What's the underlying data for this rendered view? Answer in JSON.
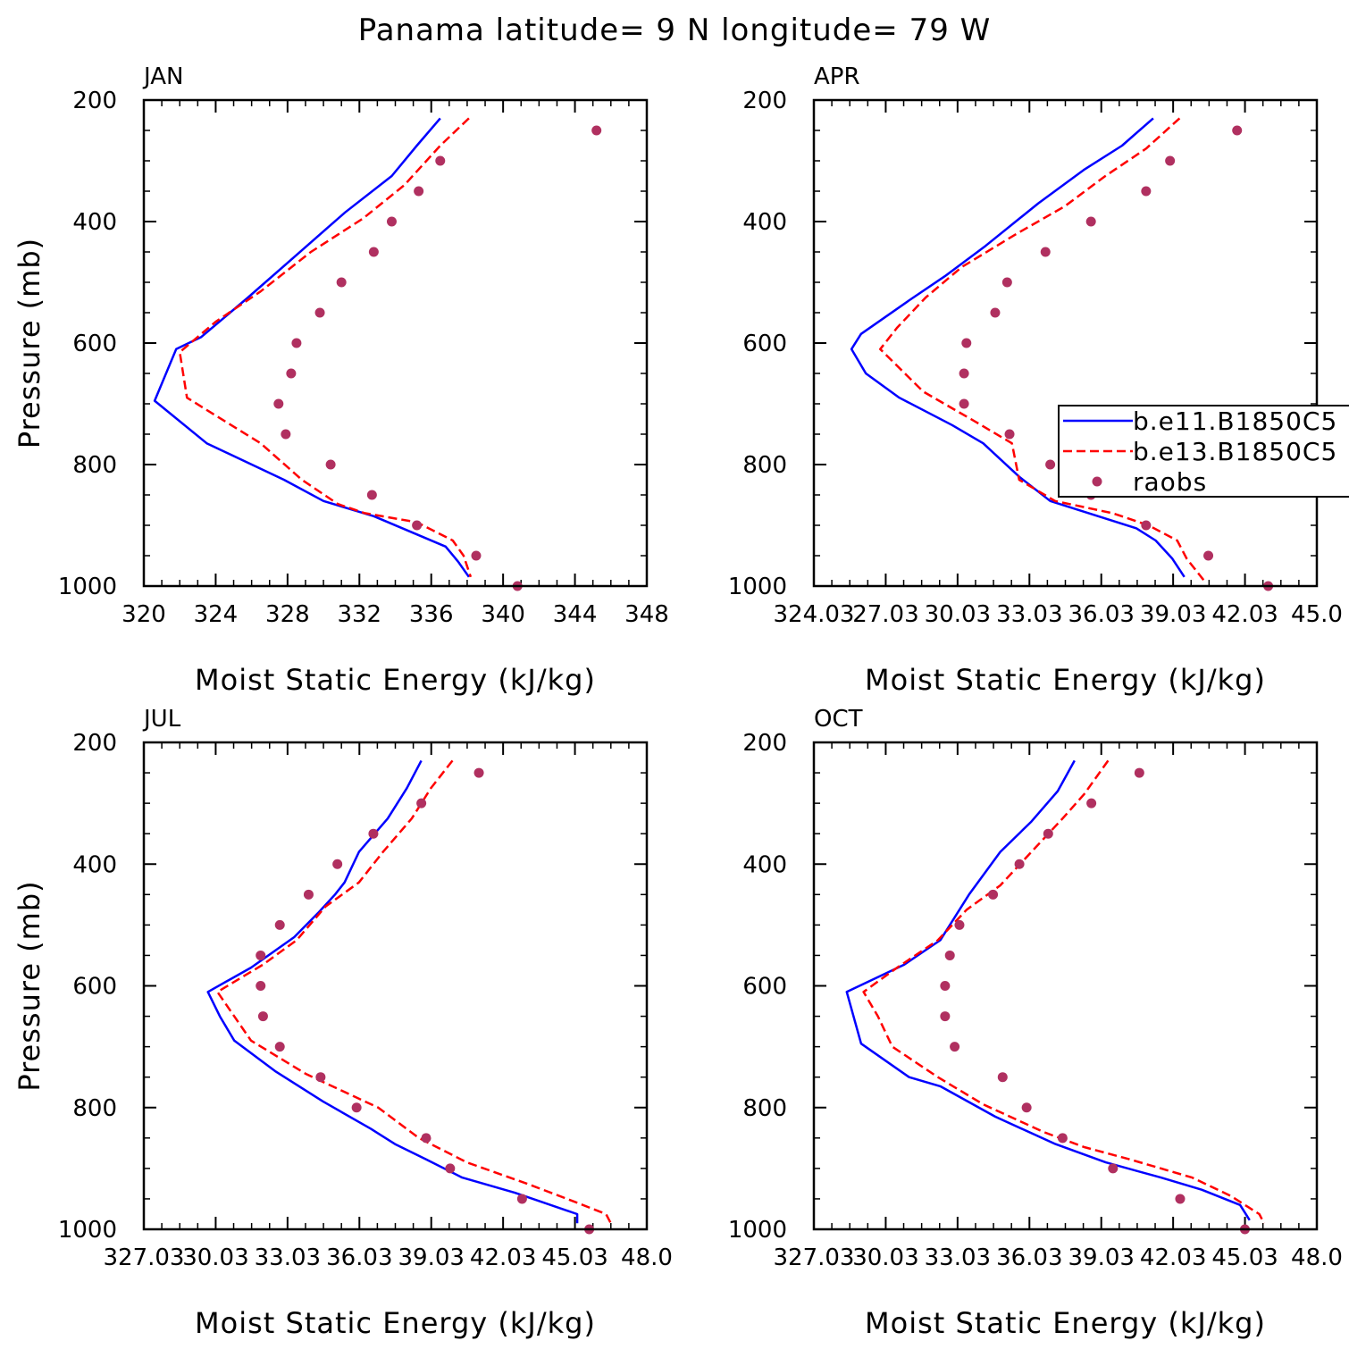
{
  "title": "Panama  latitude= 9 N longitude= 79 W",
  "legend": {
    "entries": [
      {
        "label": "b.e11.B1850C5",
        "color": "#0000ff",
        "style": "solid"
      },
      {
        "label": "b.e13.B1850C5",
        "color": "#ff0000",
        "style": "dashed"
      },
      {
        "label": "raobs",
        "color": "#b03060",
        "style": "marker"
      }
    ]
  },
  "chart_data": [
    {
      "type": "line",
      "panel_label": "JAN",
      "xlabel": "Moist Static Energy (kJ/kg)",
      "ylabel": "Pressure (mb)",
      "xlim": [
        320,
        348
      ],
      "ylim": [
        1000,
        200
      ],
      "xticks": [
        "320",
        "324",
        "328",
        "332",
        "336",
        "340",
        "344",
        "348"
      ],
      "yticks": [
        "200",
        "400",
        "600",
        "800",
        "1000"
      ],
      "series": [
        {
          "name": "b.e11.B1850C5",
          "color": "#0000ff",
          "style": "solid",
          "points": [
            [
              336.5,
              230
            ],
            [
              335.2,
              275
            ],
            [
              333.8,
              325
            ],
            [
              331.2,
              385
            ],
            [
              328.5,
              455
            ],
            [
              325.8,
              525
            ],
            [
              323.2,
              590
            ],
            [
              321.8,
              610
            ],
            [
              320.6,
              695
            ],
            [
              323.5,
              765
            ],
            [
              327.8,
              825
            ],
            [
              330.0,
              860
            ],
            [
              332.8,
              885
            ],
            [
              335.2,
              915
            ],
            [
              336.8,
              935
            ],
            [
              337.5,
              960
            ],
            [
              338.1,
              985
            ]
          ]
        },
        {
          "name": "b.e13.B1850C5",
          "color": "#ff0000",
          "style": "dashed",
          "points": [
            [
              338.1,
              230
            ],
            [
              336.5,
              275
            ],
            [
              334.5,
              340
            ],
            [
              332.2,
              395
            ],
            [
              329.3,
              450
            ],
            [
              326.5,
              515
            ],
            [
              324.0,
              565
            ],
            [
              322.0,
              615
            ],
            [
              322.4,
              690
            ],
            [
              326.5,
              765
            ],
            [
              328.8,
              825
            ],
            [
              330.8,
              865
            ],
            [
              332.3,
              880
            ],
            [
              335.2,
              895
            ],
            [
              337.2,
              925
            ],
            [
              337.8,
              950
            ],
            [
              338.2,
              985
            ]
          ]
        },
        {
          "name": "raobs",
          "color": "#b03060",
          "style": "marker",
          "points": [
            [
              345.2,
              250
            ],
            [
              336.5,
              300
            ],
            [
              335.3,
              350
            ],
            [
              333.8,
              400
            ],
            [
              332.8,
              450
            ],
            [
              331.0,
              500
            ],
            [
              329.8,
              550
            ],
            [
              328.5,
              600
            ],
            [
              328.2,
              650
            ],
            [
              327.5,
              700
            ],
            [
              327.9,
              750
            ],
            [
              330.4,
              800
            ],
            [
              332.7,
              850
            ],
            [
              335.2,
              900
            ],
            [
              338.5,
              950
            ],
            [
              340.8,
              1000
            ]
          ]
        }
      ]
    },
    {
      "type": "line",
      "panel_label": "APR",
      "xlabel": "Moist Static Energy (kJ/kg)",
      "ylabel": "",
      "xlim": [
        324.03,
        345.03
      ],
      "ylim": [
        1000,
        200
      ],
      "xticks": [
        "324.03",
        "27.03",
        "30.03",
        "33.03",
        "36.03",
        "39.03",
        "42.03",
        "45.0"
      ],
      "yticks": [
        "200",
        "400",
        "600",
        "800",
        "1000"
      ],
      "series": [
        {
          "name": "b.e11.B1850C5",
          "color": "#0000ff",
          "style": "solid",
          "points": [
            [
              338.2,
              230
            ],
            [
              336.9,
              275
            ],
            [
              335.3,
              315
            ],
            [
              333.4,
              370
            ],
            [
              331.2,
              440
            ],
            [
              329.5,
              490
            ],
            [
              328.0,
              530
            ],
            [
              326.0,
              585
            ],
            [
              325.6,
              610
            ],
            [
              326.2,
              650
            ],
            [
              327.6,
              690
            ],
            [
              329.8,
              735
            ],
            [
              331.1,
              765
            ],
            [
              332.6,
              820
            ],
            [
              333.9,
              860
            ],
            [
              335.9,
              885
            ],
            [
              337.5,
              905
            ],
            [
              338.3,
              925
            ],
            [
              339.0,
              955
            ],
            [
              339.5,
              985
            ]
          ]
        },
        {
          "name": "b.e13.B1850C5",
          "color": "#ff0000",
          "style": "dashed",
          "points": [
            [
              339.3,
              230
            ],
            [
              337.9,
              280
            ],
            [
              336.2,
              325
            ],
            [
              334.5,
              375
            ],
            [
              332.5,
              420
            ],
            [
              330.2,
              475
            ],
            [
              328.7,
              525
            ],
            [
              327.5,
              575
            ],
            [
              326.8,
              610
            ],
            [
              328.6,
              680
            ],
            [
              330.8,
              730
            ],
            [
              332.3,
              765
            ],
            [
              332.6,
              825
            ],
            [
              334.1,
              860
            ],
            [
              336.5,
              880
            ],
            [
              338.0,
              900
            ],
            [
              339.2,
              925
            ],
            [
              339.6,
              955
            ],
            [
              340.3,
              990
            ]
          ]
        },
        {
          "name": "raobs",
          "color": "#b03060",
          "style": "marker",
          "points": [
            [
              341.7,
              250
            ],
            [
              338.9,
              300
            ],
            [
              337.9,
              350
            ],
            [
              335.6,
              400
            ],
            [
              333.7,
              450
            ],
            [
              332.1,
              500
            ],
            [
              331.6,
              550
            ],
            [
              330.4,
              600
            ],
            [
              330.3,
              650
            ],
            [
              330.3,
              700
            ],
            [
              332.2,
              750
            ],
            [
              333.9,
              800
            ],
            [
              335.6,
              850
            ],
            [
              337.9,
              900
            ],
            [
              340.5,
              950
            ],
            [
              343.0,
              1000
            ]
          ]
        }
      ]
    },
    {
      "type": "line",
      "panel_label": "JUL",
      "xlabel": "Moist Static Energy (kJ/kg)",
      "ylabel": "Pressure (mb)",
      "xlim": [
        327.03,
        348.0
      ],
      "ylim": [
        1000,
        200
      ],
      "xticks": [
        "327.03",
        "30.03",
        "33.03",
        "36.03",
        "39.03",
        "42.03",
        "45.03",
        "48.0"
      ],
      "yticks": [
        "200",
        "400",
        "600",
        "800",
        "1000"
      ],
      "series": [
        {
          "name": "b.e11.B1850C5",
          "color": "#0000ff",
          "style": "solid",
          "points": [
            [
              338.6,
              230
            ],
            [
              338.0,
              275
            ],
            [
              337.2,
              325
            ],
            [
              336.0,
              380
            ],
            [
              335.4,
              430
            ],
            [
              335.0,
              450
            ],
            [
              334.3,
              480
            ],
            [
              333.3,
              520
            ],
            [
              331.5,
              570
            ],
            [
              329.7,
              610
            ],
            [
              330.2,
              650
            ],
            [
              330.8,
              690
            ],
            [
              332.5,
              740
            ],
            [
              334.5,
              790
            ],
            [
              336.5,
              835
            ],
            [
              337.5,
              860
            ],
            [
              338.8,
              885
            ],
            [
              340.3,
              915
            ],
            [
              342.5,
              940
            ],
            [
              345.1,
              975
            ],
            [
              345.1,
              990
            ]
          ]
        },
        {
          "name": "b.e13.B1850C5",
          "color": "#ff0000",
          "style": "dashed",
          "points": [
            [
              339.9,
              230
            ],
            [
              339.0,
              275
            ],
            [
              338.2,
              325
            ],
            [
              337.0,
              380
            ],
            [
              336.0,
              430
            ],
            [
              334.6,
              470
            ],
            [
              333.4,
              525
            ],
            [
              332.0,
              565
            ],
            [
              330.1,
              610
            ],
            [
              330.8,
              650
            ],
            [
              331.5,
              690
            ],
            [
              333.8,
              745
            ],
            [
              336.8,
              800
            ],
            [
              338.5,
              850
            ],
            [
              340.5,
              890
            ],
            [
              343.0,
              925
            ],
            [
              345.0,
              955
            ],
            [
              346.3,
              975
            ],
            [
              346.5,
              990
            ]
          ]
        },
        {
          "name": "raobs",
          "color": "#b03060",
          "style": "marker",
          "points": [
            [
              341.0,
              250
            ],
            [
              338.6,
              300
            ],
            [
              336.6,
              350
            ],
            [
              335.1,
              400
            ],
            [
              333.9,
              450
            ],
            [
              332.7,
              500
            ],
            [
              331.9,
              550
            ],
            [
              331.9,
              600
            ],
            [
              332.0,
              650
            ],
            [
              332.7,
              700
            ],
            [
              334.4,
              750
            ],
            [
              335.9,
              800
            ],
            [
              338.8,
              850
            ],
            [
              339.8,
              900
            ],
            [
              342.8,
              950
            ],
            [
              345.6,
              1000
            ]
          ]
        }
      ]
    },
    {
      "type": "line",
      "panel_label": "OCT",
      "xlabel": "Moist Static Energy (kJ/kg)",
      "ylabel": "",
      "xlim": [
        327.03,
        348.0
      ],
      "ylim": [
        1000,
        200
      ],
      "xticks": [
        "327.03",
        "30.03",
        "33.03",
        "36.03",
        "39.03",
        "42.03",
        "45.03",
        "48.0"
      ],
      "yticks": [
        "200",
        "400",
        "600",
        "800",
        "1000"
      ],
      "series": [
        {
          "name": "b.e11.B1850C5",
          "color": "#0000ff",
          "style": "solid",
          "points": [
            [
              337.9,
              230
            ],
            [
              337.2,
              280
            ],
            [
              336.1,
              330
            ],
            [
              334.8,
              380
            ],
            [
              333.5,
              450
            ],
            [
              332.3,
              525
            ],
            [
              330.8,
              565
            ],
            [
              328.4,
              610
            ],
            [
              329.0,
              695
            ],
            [
              331.0,
              750
            ],
            [
              332.3,
              765
            ],
            [
              334.6,
              815
            ],
            [
              337.1,
              860
            ],
            [
              339.2,
              890
            ],
            [
              341.5,
              915
            ],
            [
              343.2,
              935
            ],
            [
              344.8,
              960
            ],
            [
              345.2,
              985
            ]
          ]
        },
        {
          "name": "b.e13.B1850C5",
          "color": "#ff0000",
          "style": "dashed",
          "points": [
            [
              339.3,
              230
            ],
            [
              338.3,
              285
            ],
            [
              337.4,
              325
            ],
            [
              336.1,
              380
            ],
            [
              334.8,
              435
            ],
            [
              333.4,
              475
            ],
            [
              332.2,
              525
            ],
            [
              330.5,
              570
            ],
            [
              329.1,
              610
            ],
            [
              329.7,
              650
            ],
            [
              330.3,
              700
            ],
            [
              332.2,
              750
            ],
            [
              334.1,
              795
            ],
            [
              336.6,
              840
            ],
            [
              338.3,
              865
            ],
            [
              340.2,
              885
            ],
            [
              342.8,
              915
            ],
            [
              344.4,
              945
            ],
            [
              345.6,
              975
            ],
            [
              345.8,
              990
            ]
          ]
        },
        {
          "name": "raobs",
          "color": "#b03060",
          "style": "marker",
          "points": [
            [
              340.6,
              250
            ],
            [
              338.6,
              300
            ],
            [
              336.8,
              350
            ],
            [
              335.6,
              400
            ],
            [
              334.5,
              450
            ],
            [
              333.1,
              500
            ],
            [
              332.7,
              550
            ],
            [
              332.5,
              600
            ],
            [
              332.5,
              650
            ],
            [
              332.9,
              700
            ],
            [
              334.9,
              750
            ],
            [
              335.9,
              800
            ],
            [
              337.4,
              850
            ],
            [
              339.5,
              900
            ],
            [
              342.3,
              950
            ],
            [
              345.0,
              1000
            ]
          ]
        }
      ]
    }
  ]
}
